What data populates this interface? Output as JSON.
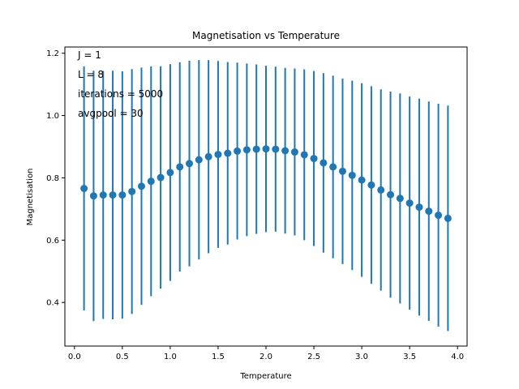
{
  "chart_data": {
    "type": "scatter",
    "title": "Magnetisation vs Temperature",
    "xlabel": "Temperature",
    "ylabel": "Magnetisation",
    "xlim": [
      -0.1,
      4.1
    ],
    "ylim": [
      0.26,
      1.22
    ],
    "xticks": [
      0.0,
      0.5,
      1.0,
      1.5,
      2.0,
      2.5,
      3.0,
      3.5,
      4.0
    ],
    "xtick_labels": [
      "0.0",
      "0.5",
      "1.0",
      "1.5",
      "2.0",
      "2.5",
      "3.0",
      "3.5",
      "4.0"
    ],
    "yticks": [
      0.4,
      0.6,
      0.8,
      1.0,
      1.2
    ],
    "ytick_labels": [
      "0.4",
      "0.6",
      "0.8",
      "1.0",
      "1.2"
    ],
    "grid": false,
    "color": "#1f77b4",
    "annotations": [
      "J = 1",
      "L = 8",
      "iterations = 5000",
      "avgpool = 30"
    ],
    "x": [
      0.1,
      0.2,
      0.3,
      0.4,
      0.5,
      0.6,
      0.7,
      0.8,
      0.9,
      1.0,
      1.1,
      1.2,
      1.3,
      1.4,
      1.5,
      1.6,
      1.7,
      1.8,
      1.9,
      2.0,
      2.1,
      2.2,
      2.3,
      2.4,
      2.5,
      2.6,
      2.7,
      2.8,
      2.9,
      3.0,
      3.1,
      3.2,
      3.3,
      3.4,
      3.5,
      3.6,
      3.7,
      3.8,
      3.9
    ],
    "y": [
      0.766,
      0.742,
      0.745,
      0.745,
      0.745,
      0.756,
      0.773,
      0.789,
      0.801,
      0.817,
      0.835,
      0.846,
      0.858,
      0.868,
      0.875,
      0.879,
      0.886,
      0.89,
      0.892,
      0.893,
      0.892,
      0.887,
      0.883,
      0.874,
      0.862,
      0.848,
      0.835,
      0.821,
      0.808,
      0.793,
      0.777,
      0.761,
      0.746,
      0.734,
      0.719,
      0.706,
      0.693,
      0.68,
      0.67
    ],
    "yerr": [
      0.392,
      0.402,
      0.398,
      0.399,
      0.397,
      0.393,
      0.381,
      0.369,
      0.357,
      0.348,
      0.336,
      0.33,
      0.32,
      0.31,
      0.3,
      0.293,
      0.284,
      0.277,
      0.272,
      0.267,
      0.265,
      0.266,
      0.268,
      0.274,
      0.281,
      0.288,
      0.293,
      0.298,
      0.304,
      0.311,
      0.317,
      0.323,
      0.331,
      0.337,
      0.342,
      0.348,
      0.352,
      0.358,
      0.362
    ]
  }
}
